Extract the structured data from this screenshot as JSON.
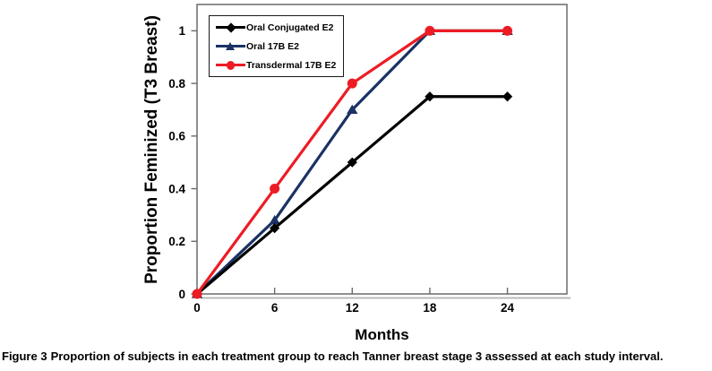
{
  "figure_caption": {
    "label": "Figure 3",
    "text": "Proportion of subjects in each treatment group to reach Tanner breast stage 3 assessed at each study interval."
  },
  "chart_data": {
    "type": "line",
    "title": "",
    "xlabel": "Months",
    "ylabel": "Proportion Feminized (T3 Breast)",
    "x": [
      0,
      6,
      12,
      18,
      24
    ],
    "xlim": [
      0,
      28.6
    ],
    "ylim": [
      0,
      1.1
    ],
    "xticks": [
      0,
      6,
      12,
      18,
      24
    ],
    "xtick_labels": [
      "0",
      "6",
      "12",
      "18",
      "24"
    ],
    "yticks": [
      0,
      0.2,
      0.4,
      0.6,
      0.8,
      1
    ],
    "ytick_labels": [
      "0",
      "0.2",
      "0.4",
      "0.6",
      "0.8",
      "1"
    ],
    "grid": false,
    "legend_position": "top-left-inside",
    "series": [
      {
        "name": "Oral Conjugated E2",
        "color": "#000000",
        "marker": "diamond",
        "values": [
          0,
          0.25,
          0.5,
          0.75,
          0.75
        ]
      },
      {
        "name": "Oral 17B E2",
        "color": "#1A3264",
        "marker": "triangle",
        "values": [
          0,
          0.28,
          0.7,
          1,
          1
        ]
      },
      {
        "name": "Transdermal 17B E2",
        "color": "#ED1C24",
        "marker": "circle",
        "values": [
          0,
          0.4,
          0.8,
          1,
          1
        ]
      }
    ],
    "draw_order": [
      1,
      0,
      2
    ],
    "axis_color": "#6a6a6a",
    "shadow_color": "#b3b3b3"
  }
}
